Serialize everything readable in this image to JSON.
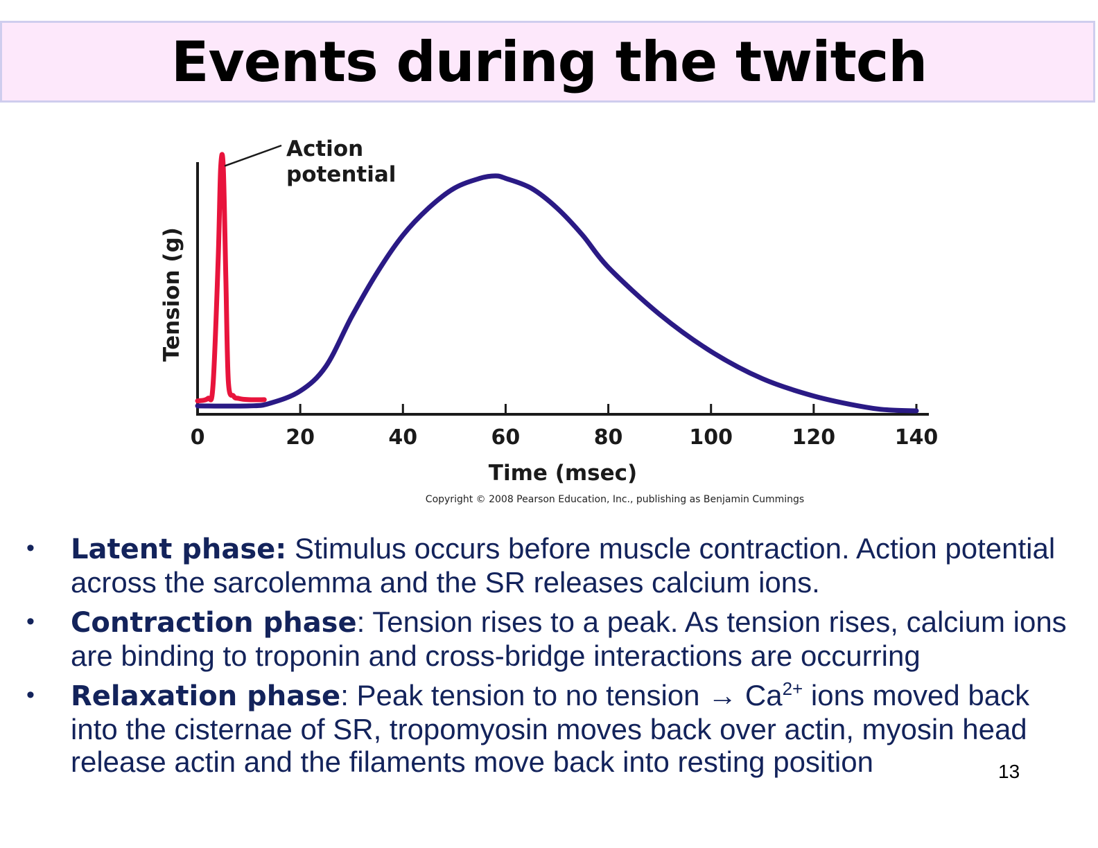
{
  "slide": {
    "title": "Events during the twitch",
    "page_number": "13",
    "copyright": "Copyright © 2008 Pearson Education, Inc., publishing as Benjamin Cummings"
  },
  "chart_data": {
    "type": "line",
    "title": "",
    "xlabel": "Time (msec)",
    "ylabel": "Tension (g)",
    "xlim": [
      0,
      140
    ],
    "x_ticks": [
      "0",
      "20",
      "40",
      "60",
      "80",
      "100",
      "120",
      "140"
    ],
    "annotation": {
      "line1": "Action",
      "line2": "potential"
    },
    "series": [
      {
        "color": "#e8143c",
        "x": [
          0,
          2,
          3,
          4,
          4.5,
          5,
          5.5,
          6,
          7,
          8,
          10,
          13
        ],
        "y": [
          0.04,
          0.05,
          0.1,
          0.6,
          0.98,
          0.99,
          0.55,
          0.12,
          0.06,
          0.05,
          0.045,
          0.045
        ]
      },
      {
        "color": "#2a1a85",
        "x": [
          0,
          10,
          14,
          20,
          25,
          30,
          35,
          40,
          45,
          50,
          55,
          58,
          60,
          65,
          70,
          75,
          80,
          90,
          100,
          110,
          120,
          130,
          135,
          140
        ],
        "y": [
          0.02,
          0.02,
          0.03,
          0.08,
          0.18,
          0.38,
          0.56,
          0.71,
          0.82,
          0.9,
          0.94,
          0.95,
          0.94,
          0.9,
          0.82,
          0.71,
          0.58,
          0.39,
          0.24,
          0.13,
          0.06,
          0.015,
          0.003,
          0.0
        ]
      }
    ]
  },
  "bullets": [
    {
      "term": "Latent phase:",
      "text": " Stimulus occurs before muscle contraction. Action potential  across the sarcolemma and the SR releases calcium ions."
    },
    {
      "term": "Contraction phase",
      "text": ": Tension rises to a peak. As tension rises, calcium ions are binding to troponin and cross-bridge interactions are occurring"
    },
    {
      "term": "Relaxation phase",
      "text_before": ": Peak tension to no tension ",
      "arrow": "→",
      "ion": " Ca",
      "ion_charge": "2+",
      "text_after": " ions moved back into the cisternae of SR, tropomyosin moves back over actin, myosin head release actin and the filaments move back into resting position"
    }
  ]
}
